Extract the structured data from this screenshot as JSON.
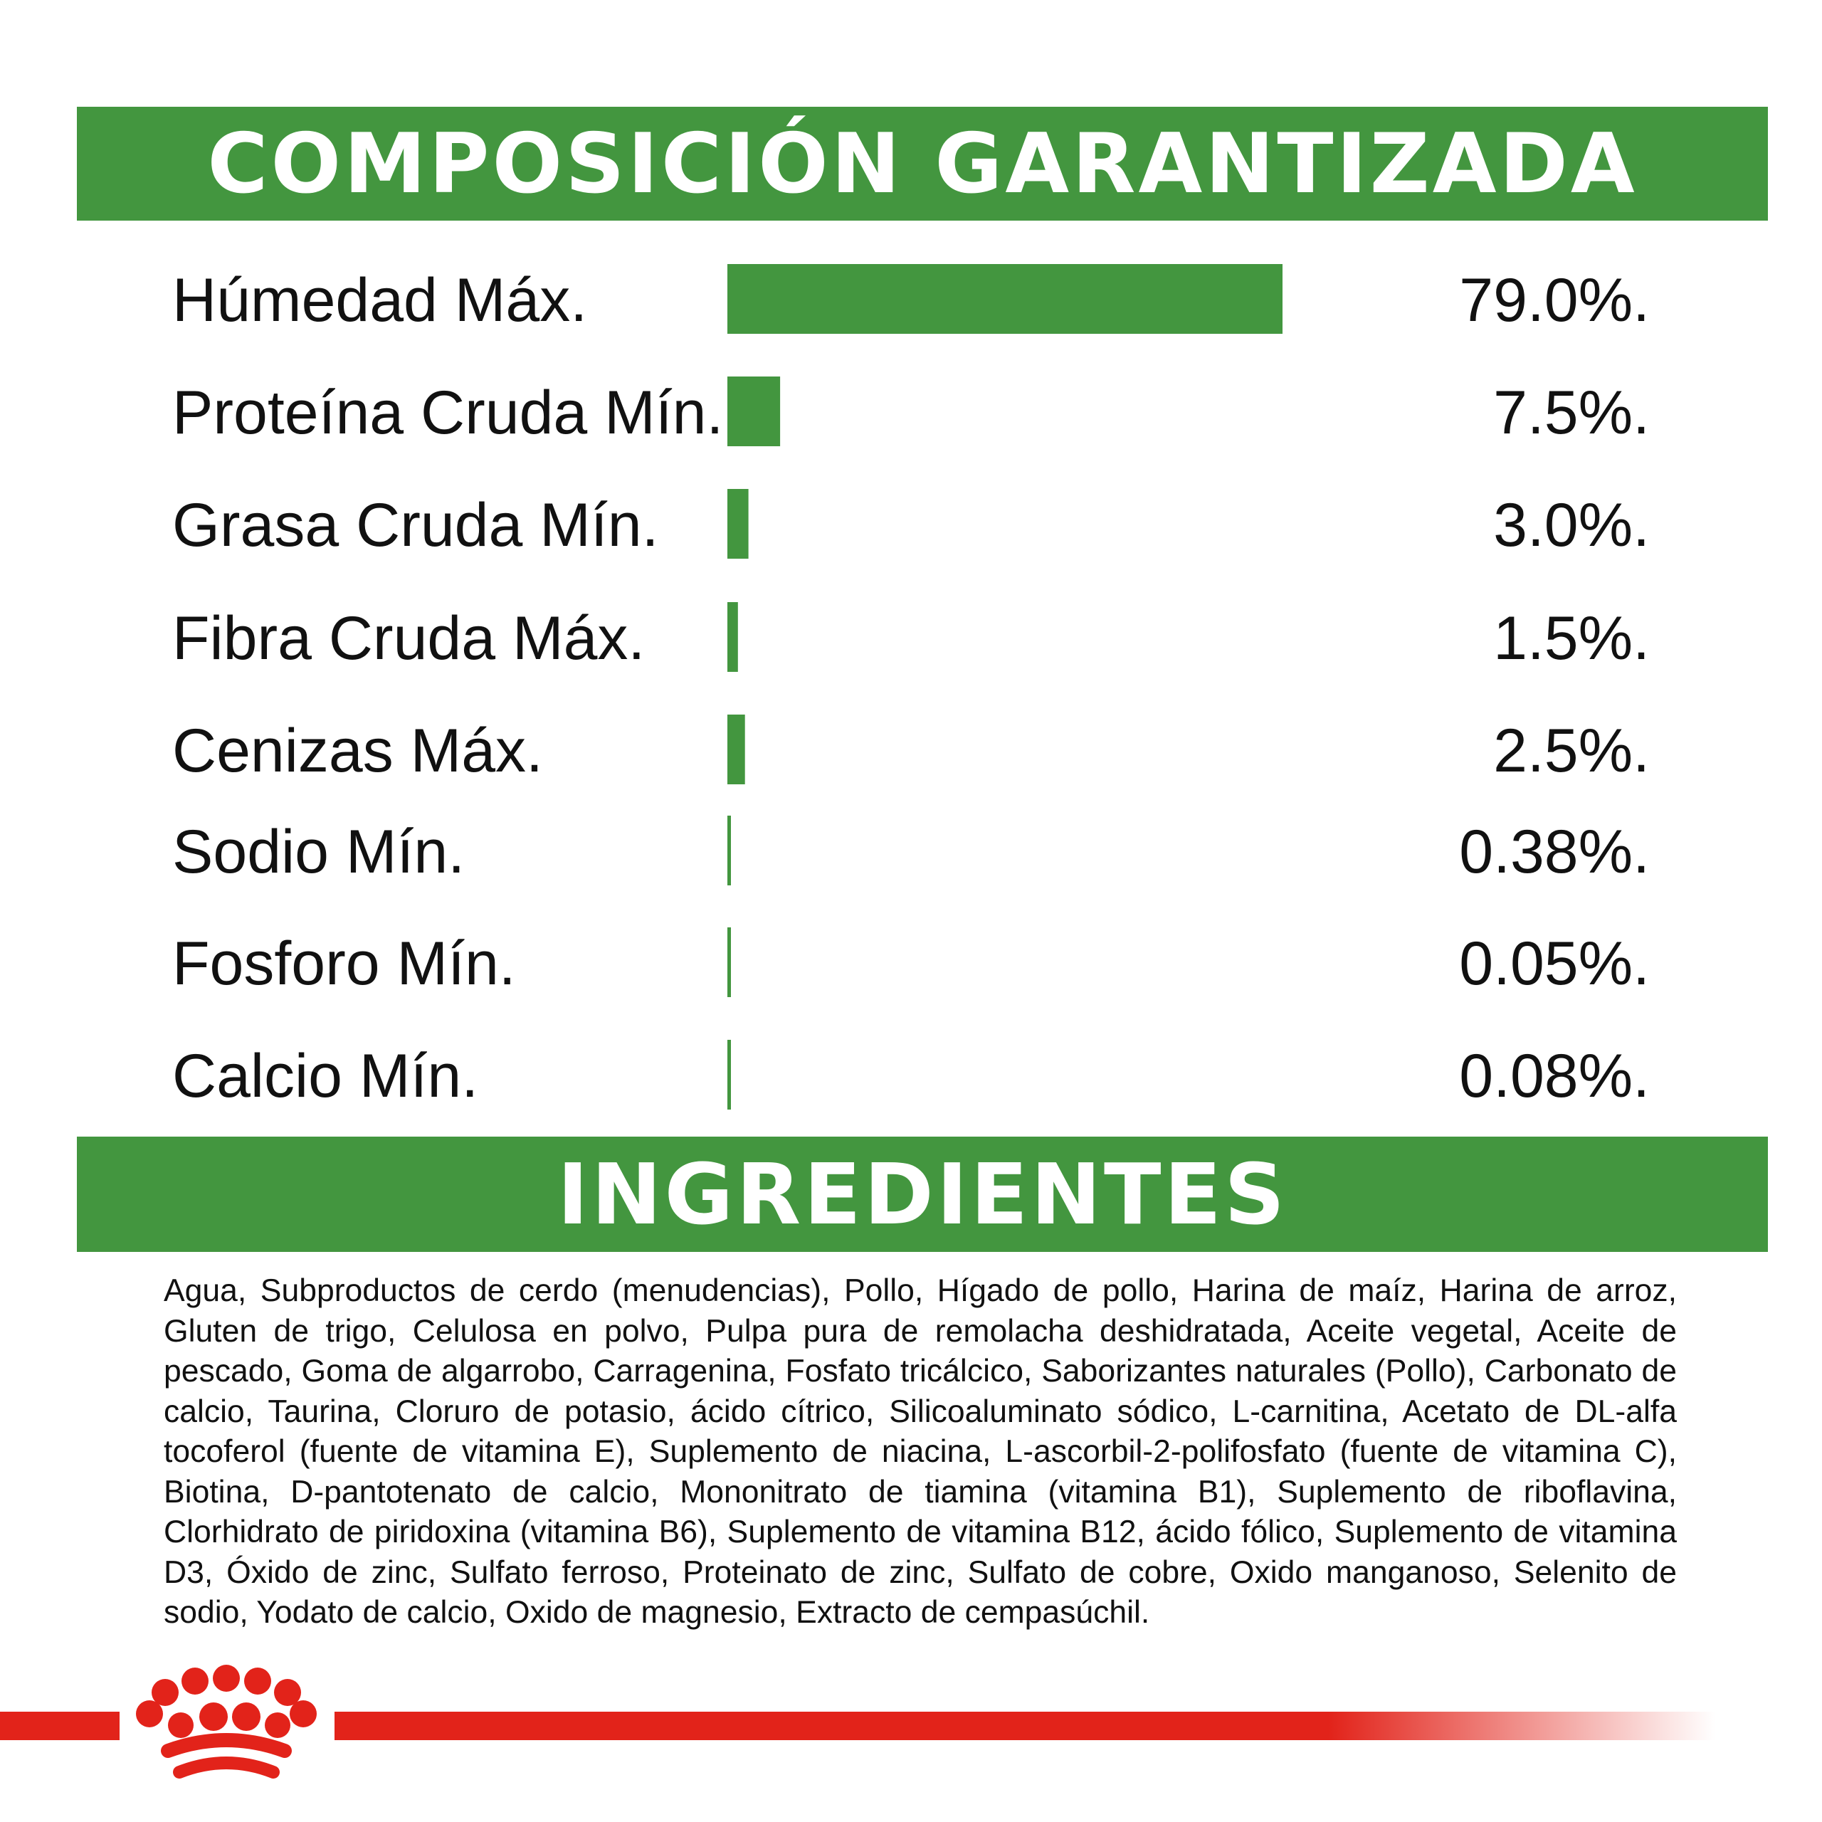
{
  "header": {
    "title": "COMPOSICIÓN GARANTIZADA"
  },
  "ingredients_section": {
    "title": "INGREDIENTES",
    "text": "Agua, Subproductos de cerdo (menudencias), Pollo, Hígado de pollo, Harina de maíz, Harina de arroz, Gluten de trigo, Celulosa en polvo, Pulpa pura de remolacha deshidratada, Aceite vegetal, Aceite de pescado, Goma de algarrobo, Carragenina, Fosfato tricálcico, Saborizantes naturales (Pollo), Carbonato de calcio, Taurina, Cloruro de potasio, ácido cítrico, Silicoaluminato sódico, L-carnitina, Acetato de DL-alfa tocoferol (fuente de vitamina E), Suplemento de niacina, L-ascorbil-2-polifosfato (fuente de vitamina C), Biotina, D-pantotenato de calcio, Mononitrato de tiamina (vitamina B1), Suplemento de riboflavina, Clorhidrato de piridoxina (vitamina B6), Suplemento de vitamina B12, ácido fólico, Suplemento de vitamina D3, Óxido de zinc, Sulfato ferroso, Proteinato de zinc, Sulfato de cobre, Oxido manganoso, Selenito de sodio, Yodato de calcio, Oxido de magnesio, Extracto de cempasúchil."
  },
  "colors": {
    "green": "#43963f",
    "red": "#e2231a",
    "text": "#111111"
  },
  "chart_data": {
    "type": "bar",
    "orientation": "horizontal",
    "categories": [
      "Húmedad Máx.",
      "Proteína Cruda Mín.",
      "Grasa Cruda Mín.",
      "Fibra Cruda Máx.",
      "Cenizas Máx.",
      "Sodio Mín.",
      "Fosforo Mín.",
      "Calcio Mín."
    ],
    "values": [
      79.0,
      7.5,
      3.0,
      1.5,
      2.5,
      0.38,
      0.05,
      0.08
    ],
    "value_labels": [
      "79.0%.",
      "7.5%.",
      "3.0%.",
      "1.5%.",
      "2.5%.",
      "0.38%.",
      "0.05%.",
      "0.08%."
    ],
    "xlim": [
      0,
      100
    ],
    "grid": false,
    "legend": "none"
  },
  "logo": {
    "icon": "royal-canin-crown-icon"
  }
}
